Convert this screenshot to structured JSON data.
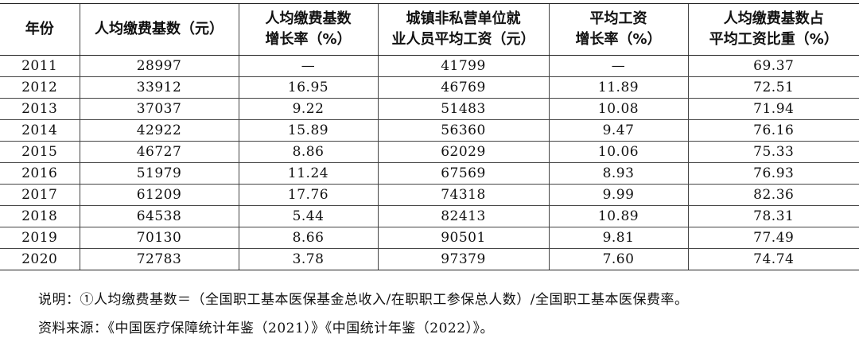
{
  "table": {
    "headers": [
      [
        "年份"
      ],
      [
        "人均缴费基数（元）"
      ],
      [
        "人均缴费基数",
        "增长率（%）"
      ],
      [
        "城镇非私营单位就",
        "业人员平均工资（元）"
      ],
      [
        "平均工资",
        "增长率（%）"
      ],
      [
        "人均缴费基数占",
        "平均工资比重（%）"
      ]
    ],
    "rows": [
      [
        "2011",
        "28997",
        "—",
        "41799",
        "—",
        "69.37"
      ],
      [
        "2012",
        "33912",
        "16.95",
        "46769",
        "11.89",
        "72.51"
      ],
      [
        "2013",
        "37037",
        "9.22",
        "51483",
        "10.08",
        "71.94"
      ],
      [
        "2014",
        "42922",
        "15.89",
        "56360",
        "9.47",
        "76.16"
      ],
      [
        "2015",
        "46727",
        "8.86",
        "62029",
        "10.06",
        "75.33"
      ],
      [
        "2016",
        "51979",
        "11.24",
        "67569",
        "8.93",
        "76.93"
      ],
      [
        "2017",
        "61209",
        "17.76",
        "74318",
        "9.99",
        "82.36"
      ],
      [
        "2018",
        "64538",
        "5.44",
        "82413",
        "10.89",
        "78.31"
      ],
      [
        "2019",
        "70130",
        "8.66",
        "90501",
        "9.81",
        "77.49"
      ],
      [
        "2020",
        "72783",
        "3.78",
        "97379",
        "7.60",
        "74.74"
      ]
    ]
  },
  "notes": [
    "说明：①人均缴费基数＝（全国职工基本医保基金总收入/在职职工参保总人数）/全国职工基本医保费率。",
    "资料来源：《中国医疗保障统计年鉴（2021）》《中国统计年鉴（2022）》。"
  ]
}
